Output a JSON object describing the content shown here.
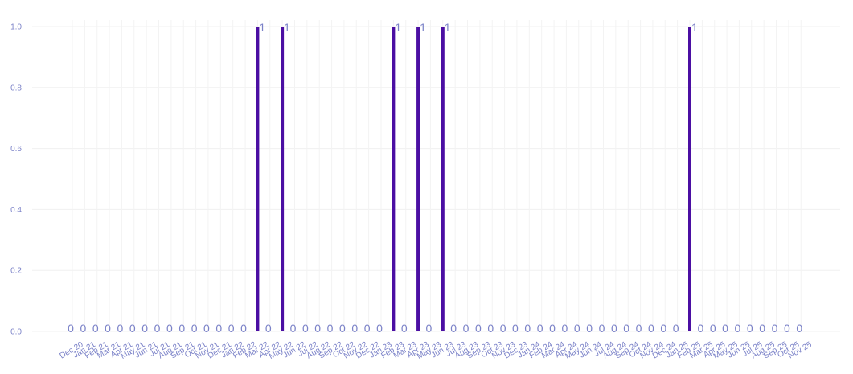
{
  "chart_data": {
    "type": "bar",
    "title": "",
    "xlabel": "",
    "ylabel": "",
    "ylim": [
      0,
      1
    ],
    "yticks": [
      "0.0",
      "0.2",
      "0.4",
      "0.6",
      "0.8",
      "1.0"
    ],
    "bar_color": "#4b0fa3",
    "label_color": "#7b82c8",
    "grid": true,
    "categories": [
      "Dec 20",
      "Jan 21",
      "Feb 21",
      "Mar 21",
      "Apr 21",
      "May 21",
      "Jun 21",
      "Jul 21",
      "Aug 21",
      "Sep 21",
      "Oct 21",
      "Nov 21",
      "Dec 21",
      "Jan 22",
      "Feb 22",
      "Mar 22",
      "Apr 22",
      "May 22",
      "Jun 22",
      "Jul 22",
      "Aug 22",
      "Sep 22",
      "Oct 22",
      "Nov 22",
      "Dec 22",
      "Jan 23",
      "Feb 23",
      "Mar 23",
      "Apr 23",
      "May 23",
      "Jun 23",
      "Jul 23",
      "Aug 23",
      "Sep 23",
      "Oct 23",
      "Nov 23",
      "Dec 23",
      "Jan 24",
      "Feb 24",
      "Mar 24",
      "Apr 24",
      "May 24",
      "Jun 24",
      "Jul 24",
      "Aug 24",
      "Sep 24",
      "Oct 24",
      "Nov 24",
      "Dec 24",
      "Jan 25",
      "Feb 25",
      "Mar 25",
      "Apr 25",
      "May 25",
      "Jun 25",
      "Jul 25",
      "Aug 25",
      "Sep 25",
      "Oct 25",
      "Nov 25"
    ],
    "values": [
      0,
      0,
      0,
      0,
      0,
      0,
      0,
      0,
      0,
      0,
      0,
      0,
      0,
      0,
      0,
      1,
      0,
      1,
      0,
      0,
      0,
      0,
      0,
      0,
      0,
      0,
      1,
      0,
      1,
      0,
      1,
      0,
      0,
      0,
      0,
      0,
      0,
      0,
      0,
      0,
      0,
      0,
      0,
      0,
      0,
      0,
      0,
      0,
      0,
      0,
      1,
      0,
      0,
      0,
      0,
      0,
      0,
      0,
      0,
      0
    ],
    "data_labels": [
      "0",
      "0",
      "0",
      "0",
      "0",
      "0",
      "0",
      "0",
      "0",
      "0",
      "0",
      "0",
      "0",
      "0",
      "0",
      "1",
      "0",
      "1",
      "0",
      "0",
      "0",
      "0",
      "0",
      "0",
      "0",
      "0",
      "1",
      "0",
      "1",
      "0",
      "1",
      "0",
      "0",
      "0",
      "0",
      "0",
      "0",
      "0",
      "0",
      "0",
      "0",
      "0",
      "0",
      "0",
      "0",
      "0",
      "0",
      "0",
      "0",
      "0",
      "1",
      "0",
      "0",
      "0",
      "0",
      "0",
      "0",
      "0",
      "0",
      "0"
    ]
  }
}
